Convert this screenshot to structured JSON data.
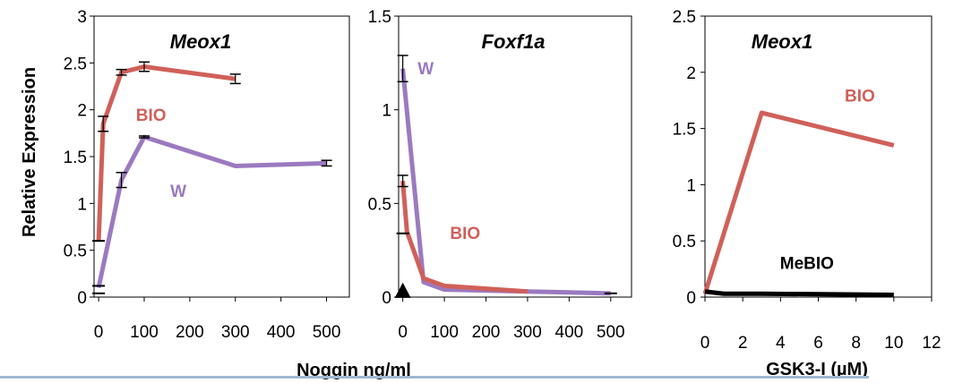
{
  "y_axis_label": "Relative Expression",
  "x_axis_labels": [
    "Noggin ng/ml",
    "GSK3-I (µM)"
  ],
  "colors": {
    "BIO": "#d0605a",
    "W": "#9b7ac0",
    "MeBIO": "#000000",
    "rule": "#9fb7d3"
  },
  "chart_data": [
    {
      "type": "line",
      "title": "Meox1",
      "xlabel": "Noggin ng/ml",
      "ylabel": "Relative Expression",
      "xlim": [
        -10,
        550
      ],
      "ylim": [
        0,
        3
      ],
      "xticks": [
        0,
        100,
        200,
        300,
        400,
        500
      ],
      "yticks": [
        0,
        0.5,
        1,
        1.5,
        2,
        2.5,
        3
      ],
      "grid": false,
      "series": [
        {
          "name": "BIO",
          "color": "#d0605a",
          "label_at": [
            115,
            1.88
          ],
          "x": [
            0,
            10,
            50,
            100,
            300
          ],
          "y": [
            0.6,
            1.85,
            2.4,
            2.46,
            2.33
          ],
          "err": [
            0,
            0.08,
            0.03,
            0.05,
            0.05
          ]
        },
        {
          "name": "W",
          "color": "#9b7ac0",
          "label_at": [
            175,
            1.07
          ],
          "x": [
            0,
            50,
            100,
            300,
            500
          ],
          "y": [
            0.1,
            1.25,
            1.71,
            1.4,
            1.43
          ],
          "err": [
            0,
            0.08,
            0.01,
            0.0,
            0.03
          ]
        }
      ],
      "extra_error_bars": [
        {
          "x": 0,
          "y": 0.04
        },
        {
          "x": 0,
          "y": 0.12
        },
        {
          "x": 0,
          "y": 0.6
        }
      ]
    },
    {
      "type": "line",
      "title": "Foxf1a",
      "xlim": [
        -10,
        550
      ],
      "ylim": [
        0,
        1.5
      ],
      "xticks": [
        0,
        100,
        200,
        300,
        400,
        500
      ],
      "yticks": [
        0,
        0.5,
        1,
        1.5
      ],
      "grid": false,
      "series": [
        {
          "name": "W",
          "color": "#9b7ac0",
          "label_at": [
            55,
            1.19
          ],
          "x": [
            0,
            50,
            100,
            300,
            500
          ],
          "y": [
            1.22,
            0.08,
            0.04,
            0.03,
            0.02
          ],
          "err": [
            0.07,
            0,
            0,
            0,
            0
          ]
        },
        {
          "name": "BIO",
          "color": "#d0605a",
          "label_at": [
            150,
            0.31
          ],
          "x": [
            0,
            10,
            50,
            100,
            300
          ],
          "y": [
            0.62,
            0.35,
            0.1,
            0.06,
            0.03
          ],
          "err": [
            0.03,
            0,
            0,
            0,
            0
          ]
        }
      ],
      "extra_error_bars": [
        {
          "x": 0,
          "y": 0.34
        },
        {
          "x": 500,
          "y": 0.02
        }
      ],
      "markers": [
        {
          "x": 0,
          "y": 0.02,
          "shape": "triangle"
        }
      ]
    },
    {
      "type": "line",
      "title": "Meox1",
      "xlabel": "GSK3-I (µM)",
      "xlim": [
        0,
        12
      ],
      "ylim": [
        0,
        2.5
      ],
      "xticks": [
        0,
        2,
        4,
        6,
        8,
        10,
        12
      ],
      "yticks": [
        0,
        0.5,
        1,
        1.5,
        2,
        2.5
      ],
      "grid": false,
      "series": [
        {
          "name": "BIO",
          "color": "#d0605a",
          "label_at": [
            8.2,
            1.74
          ],
          "x": [
            0,
            3,
            10
          ],
          "y": [
            0.03,
            1.64,
            1.35
          ]
        },
        {
          "name": "MeBIO",
          "color": "#000000",
          "label_at": [
            5.4,
            0.25
          ],
          "x": [
            0,
            1,
            3,
            10
          ],
          "y": [
            0.05,
            0.03,
            0.03,
            0.02
          ]
        }
      ]
    }
  ]
}
